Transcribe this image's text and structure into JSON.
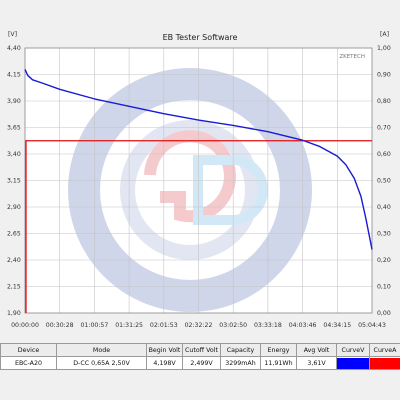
{
  "window": {
    "title": "EB Tester Software"
  },
  "watermark": "ZKETECH",
  "colors": {
    "voltage_curve": "#1a1ad6",
    "current_curve": "#e01010",
    "grid": "#c4c4c4",
    "curve_v_swatch": "#0000ff",
    "curve_a_swatch": "#ff0000"
  },
  "chart_data": {
    "type": "line",
    "title": "EB Tester Software",
    "y_left_unit": "[V]",
    "y_right_unit": "[A]",
    "y_left_ticks": [
      "4,40",
      "4,15",
      "3,90",
      "3,65",
      "3,40",
      "3,15",
      "2,90",
      "2,65",
      "2,40",
      "2,15",
      "1,90"
    ],
    "y_right_ticks": [
      "1,00",
      "0,90",
      "0,80",
      "0,70",
      "0,60",
      "0,50",
      "0,40",
      "0,30",
      "0,20",
      "0,10",
      "0,00"
    ],
    "x_ticks": [
      "00:00:00",
      "00:30:28",
      "01:00:57",
      "01:31:25",
      "02:01:53",
      "02:32:22",
      "03:02:50",
      "03:33:18",
      "04:03:46",
      "04:34:15",
      "05:04:43"
    ],
    "ylim_left": [
      1.9,
      4.4
    ],
    "ylim_right": [
      0.0,
      1.0
    ],
    "xlim_seconds": [
      0,
      18283
    ],
    "grid": true,
    "series": [
      {
        "name": "CurveV",
        "axis": "left",
        "x_seconds": [
          0,
          150,
          400,
          900,
          1828,
          3657,
          5485,
          7313,
          9142,
          10970,
          12798,
          14626,
          15540,
          16455,
          16900,
          17350,
          17700,
          17950,
          18150,
          18283
        ],
        "values": [
          4.198,
          4.14,
          4.1,
          4.07,
          4.01,
          3.92,
          3.85,
          3.78,
          3.72,
          3.67,
          3.61,
          3.53,
          3.47,
          3.38,
          3.3,
          3.17,
          3.0,
          2.8,
          2.62,
          2.499
        ]
      },
      {
        "name": "CurveA",
        "axis": "right",
        "x_seconds": [
          0,
          18283
        ],
        "values": [
          0.65,
          0.65
        ]
      }
    ]
  },
  "table": {
    "headers": [
      "Device",
      "Mode",
      "Begin Volt",
      "Cutoff Volt",
      "Capacity",
      "Energy",
      "Avg Volt",
      "CurveV",
      "CurveA"
    ],
    "row": [
      "EBC-A20",
      "D-CC 0,65A 2,50V",
      "4,198V",
      "2,499V",
      "3299mAh",
      "11,91Wh",
      "3,61V"
    ]
  }
}
